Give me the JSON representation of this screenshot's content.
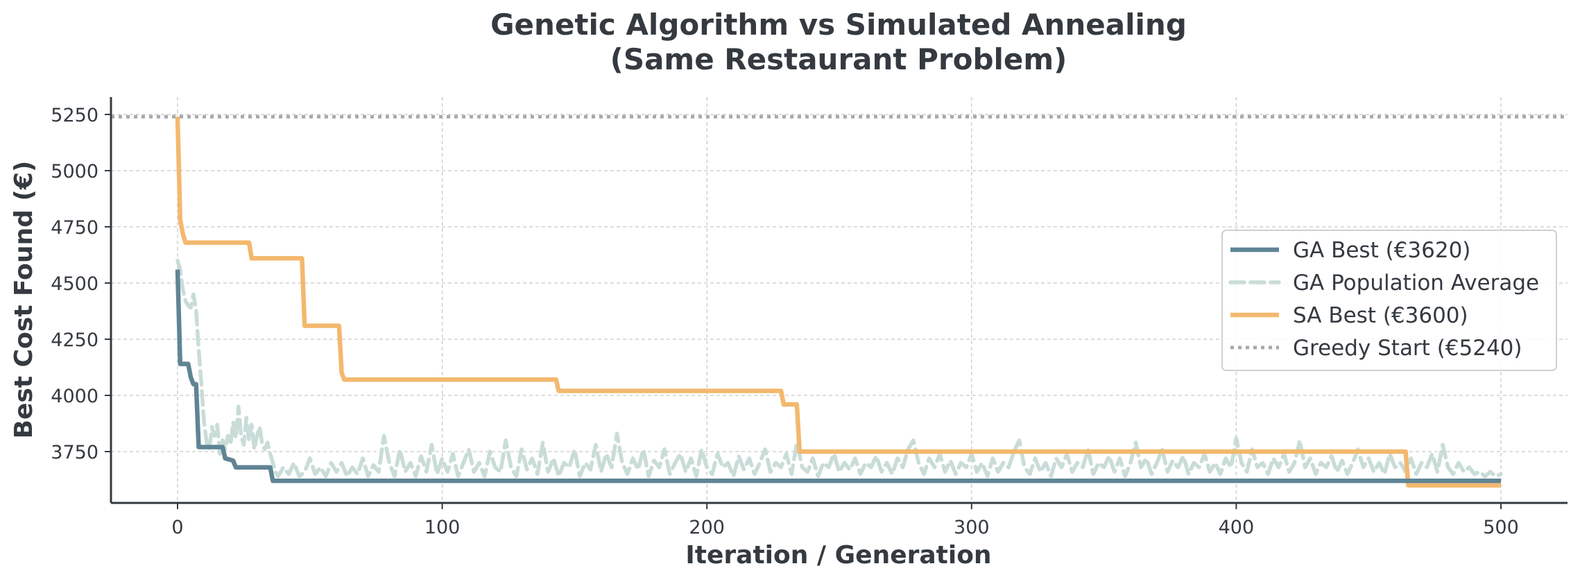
{
  "chart_data": {
    "type": "line",
    "title_lines": [
      "Genetic Algorithm vs Simulated Annealing",
      "(Same Restaurant Problem)"
    ],
    "xlabel": "Iteration / Generation",
    "ylabel": "Best Cost Found (€)",
    "xlim": [
      -25,
      525
    ],
    "ylim": [
      3530,
      5330
    ],
    "xticks": [
      0,
      100,
      200,
      300,
      400,
      500
    ],
    "yticks": [
      3750,
      4000,
      4250,
      4500,
      4750,
      5000,
      5250
    ],
    "grid": true,
    "legend_position": "center-right",
    "series": [
      {
        "name": "GA Best (€3620)",
        "color": "#5f8494",
        "style": "solid",
        "step": true,
        "points": [
          [
            0,
            4560
          ],
          [
            1,
            4140
          ],
          [
            4,
            4140
          ],
          [
            5,
            4080
          ],
          [
            6,
            4050
          ],
          [
            7,
            4050
          ],
          [
            8,
            3770
          ],
          [
            17,
            3770
          ],
          [
            18,
            3720
          ],
          [
            21,
            3710
          ],
          [
            22,
            3680
          ],
          [
            35,
            3680
          ],
          [
            36,
            3620
          ],
          [
            500,
            3620
          ]
        ]
      },
      {
        "name": "GA Population Average",
        "color": "#c9dcd8",
        "style": "dashed",
        "step": false,
        "points": [
          [
            0,
            4600
          ],
          [
            1,
            4560
          ],
          [
            2,
            4470
          ],
          [
            3,
            4420
          ],
          [
            4,
            4400
          ],
          [
            5,
            4390
          ],
          [
            6,
            4450
          ],
          [
            7,
            4380
          ],
          [
            8,
            4200
          ],
          [
            9,
            4050
          ],
          [
            10,
            3880
          ],
          [
            11,
            3790
          ],
          [
            12,
            3760
          ],
          [
            13,
            3860
          ],
          [
            14,
            3820
          ],
          [
            15,
            3870
          ],
          [
            16,
            3740
          ],
          [
            17,
            3800
          ],
          [
            18,
            3760
          ],
          [
            19,
            3820
          ],
          [
            20,
            3780
          ],
          [
            21,
            3880
          ],
          [
            22,
            3810
          ],
          [
            23,
            3950
          ],
          [
            24,
            3820
          ],
          [
            25,
            3780
          ],
          [
            26,
            3900
          ],
          [
            27,
            3800
          ],
          [
            28,
            3870
          ],
          [
            29,
            3760
          ],
          [
            30,
            3820
          ],
          [
            31,
            3860
          ],
          [
            32,
            3780
          ],
          [
            33,
            3760
          ],
          [
            34,
            3790
          ],
          [
            35,
            3740
          ],
          [
            36,
            3700
          ],
          [
            37,
            3660
          ],
          [
            38,
            3640
          ],
          [
            40,
            3680
          ],
          [
            42,
            3650
          ],
          [
            44,
            3700
          ],
          [
            46,
            3640
          ],
          [
            48,
            3660
          ],
          [
            50,
            3720
          ],
          [
            52,
            3650
          ],
          [
            54,
            3680
          ],
          [
            56,
            3640
          ],
          [
            58,
            3700
          ],
          [
            60,
            3660
          ],
          [
            62,
            3700
          ],
          [
            64,
            3640
          ],
          [
            66,
            3680
          ],
          [
            68,
            3650
          ],
          [
            70,
            3720
          ],
          [
            72,
            3640
          ],
          [
            74,
            3690
          ],
          [
            76,
            3660
          ],
          [
            78,
            3820
          ],
          [
            80,
            3700
          ],
          [
            82,
            3640
          ],
          [
            84,
            3760
          ],
          [
            86,
            3660
          ],
          [
            88,
            3700
          ],
          [
            90,
            3640
          ],
          [
            92,
            3730
          ],
          [
            94,
            3660
          ],
          [
            96,
            3780
          ],
          [
            98,
            3650
          ],
          [
            100,
            3720
          ],
          [
            102,
            3660
          ],
          [
            104,
            3740
          ],
          [
            106,
            3640
          ],
          [
            108,
            3700
          ],
          [
            110,
            3760
          ],
          [
            112,
            3660
          ],
          [
            114,
            3700
          ],
          [
            116,
            3640
          ],
          [
            118,
            3750
          ],
          [
            120,
            3680
          ],
          [
            122,
            3660
          ],
          [
            124,
            3800
          ],
          [
            126,
            3680
          ],
          [
            128,
            3640
          ],
          [
            130,
            3760
          ],
          [
            132,
            3670
          ],
          [
            134,
            3720
          ],
          [
            136,
            3650
          ],
          [
            138,
            3790
          ],
          [
            140,
            3660
          ],
          [
            142,
            3720
          ],
          [
            144,
            3640
          ],
          [
            146,
            3700
          ],
          [
            148,
            3680
          ],
          [
            150,
            3760
          ],
          [
            152,
            3640
          ],
          [
            154,
            3700
          ],
          [
            156,
            3670
          ],
          [
            158,
            3780
          ],
          [
            160,
            3660
          ],
          [
            162,
            3740
          ],
          [
            164,
            3680
          ],
          [
            166,
            3830
          ],
          [
            168,
            3700
          ],
          [
            170,
            3650
          ],
          [
            172,
            3720
          ],
          [
            174,
            3670
          ],
          [
            176,
            3760
          ],
          [
            178,
            3640
          ],
          [
            180,
            3710
          ],
          [
            182,
            3680
          ],
          [
            184,
            3760
          ],
          [
            186,
            3650
          ],
          [
            188,
            3700
          ],
          [
            190,
            3740
          ],
          [
            192,
            3660
          ],
          [
            194,
            3720
          ],
          [
            196,
            3640
          ],
          [
            198,
            3760
          ],
          [
            200,
            3680
          ],
          [
            202,
            3650
          ],
          [
            204,
            3740
          ],
          [
            206,
            3680
          ],
          [
            208,
            3700
          ],
          [
            210,
            3640
          ],
          [
            212,
            3730
          ],
          [
            214,
            3670
          ],
          [
            216,
            3720
          ],
          [
            218,
            3650
          ],
          [
            220,
            3700
          ],
          [
            222,
            3760
          ],
          [
            224,
            3660
          ],
          [
            226,
            3700
          ],
          [
            228,
            3680
          ],
          [
            230,
            3740
          ],
          [
            232,
            3650
          ],
          [
            234,
            3790
          ],
          [
            236,
            3680
          ],
          [
            238,
            3660
          ],
          [
            240,
            3720
          ],
          [
            242,
            3640
          ],
          [
            244,
            3700
          ],
          [
            246,
            3680
          ],
          [
            248,
            3740
          ],
          [
            250,
            3660
          ],
          [
            252,
            3700
          ],
          [
            254,
            3670
          ],
          [
            256,
            3720
          ],
          [
            258,
            3650
          ],
          [
            260,
            3700
          ],
          [
            262,
            3680
          ],
          [
            264,
            3730
          ],
          [
            266,
            3660
          ],
          [
            268,
            3700
          ],
          [
            270,
            3650
          ],
          [
            272,
            3720
          ],
          [
            274,
            3680
          ],
          [
            276,
            3760
          ],
          [
            278,
            3800
          ],
          [
            280,
            3700
          ],
          [
            282,
            3650
          ],
          [
            284,
            3720
          ],
          [
            286,
            3680
          ],
          [
            288,
            3740
          ],
          [
            290,
            3660
          ],
          [
            292,
            3710
          ],
          [
            294,
            3650
          ],
          [
            296,
            3700
          ],
          [
            298,
            3680
          ],
          [
            300,
            3740
          ],
          [
            302,
            3660
          ],
          [
            304,
            3700
          ],
          [
            306,
            3640
          ],
          [
            308,
            3720
          ],
          [
            310,
            3660
          ],
          [
            312,
            3700
          ],
          [
            314,
            3680
          ],
          [
            316,
            3750
          ],
          [
            318,
            3800
          ],
          [
            320,
            3680
          ],
          [
            322,
            3650
          ],
          [
            324,
            3720
          ],
          [
            326,
            3660
          ],
          [
            328,
            3700
          ],
          [
            330,
            3640
          ],
          [
            332,
            3720
          ],
          [
            334,
            3680
          ],
          [
            336,
            3740
          ],
          [
            338,
            3660
          ],
          [
            340,
            3700
          ],
          [
            342,
            3680
          ],
          [
            344,
            3760
          ],
          [
            346,
            3650
          ],
          [
            348,
            3700
          ],
          [
            350,
            3680
          ],
          [
            352,
            3730
          ],
          [
            354,
            3660
          ],
          [
            356,
            3720
          ],
          [
            358,
            3640
          ],
          [
            360,
            3700
          ],
          [
            362,
            3790
          ],
          [
            364,
            3680
          ],
          [
            366,
            3720
          ],
          [
            368,
            3650
          ],
          [
            370,
            3700
          ],
          [
            372,
            3760
          ],
          [
            374,
            3660
          ],
          [
            376,
            3710
          ],
          [
            378,
            3680
          ],
          [
            380,
            3730
          ],
          [
            382,
            3650
          ],
          [
            384,
            3700
          ],
          [
            386,
            3680
          ],
          [
            388,
            3740
          ],
          [
            390,
            3660
          ],
          [
            392,
            3700
          ],
          [
            394,
            3650
          ],
          [
            396,
            3720
          ],
          [
            398,
            3680
          ],
          [
            400,
            3810
          ],
          [
            402,
            3700
          ],
          [
            404,
            3660
          ],
          [
            406,
            3760
          ],
          [
            408,
            3680
          ],
          [
            410,
            3700
          ],
          [
            412,
            3650
          ],
          [
            414,
            3720
          ],
          [
            416,
            3680
          ],
          [
            418,
            3740
          ],
          [
            420,
            3660
          ],
          [
            422,
            3700
          ],
          [
            424,
            3800
          ],
          [
            426,
            3680
          ],
          [
            428,
            3720
          ],
          [
            430,
            3650
          ],
          [
            432,
            3700
          ],
          [
            434,
            3680
          ],
          [
            436,
            3730
          ],
          [
            438,
            3660
          ],
          [
            440,
            3710
          ],
          [
            442,
            3650
          ],
          [
            444,
            3700
          ],
          [
            446,
            3760
          ],
          [
            448,
            3680
          ],
          [
            450,
            3720
          ],
          [
            452,
            3660
          ],
          [
            454,
            3700
          ],
          [
            456,
            3650
          ],
          [
            458,
            3740
          ],
          [
            460,
            3680
          ],
          [
            462,
            3700
          ],
          [
            464,
            3660
          ],
          [
            466,
            3720
          ],
          [
            468,
            3650
          ],
          [
            470,
            3700
          ],
          [
            472,
            3680
          ],
          [
            474,
            3740
          ],
          [
            476,
            3660
          ],
          [
            478,
            3780
          ],
          [
            480,
            3680
          ],
          [
            482,
            3650
          ],
          [
            484,
            3700
          ],
          [
            486,
            3660
          ],
          [
            488,
            3680
          ],
          [
            490,
            3650
          ],
          [
            492,
            3660
          ],
          [
            494,
            3640
          ],
          [
            496,
            3660
          ],
          [
            498,
            3640
          ],
          [
            500,
            3650
          ]
        ]
      },
      {
        "name": "SA Best (€3600)",
        "color": "#f3b86e",
        "style": "solid",
        "step": true,
        "points": [
          [
            0,
            5240
          ],
          [
            1,
            4780
          ],
          [
            2,
            4720
          ],
          [
            3,
            4680
          ],
          [
            27,
            4680
          ],
          [
            28,
            4610
          ],
          [
            47,
            4610
          ],
          [
            48,
            4310
          ],
          [
            61,
            4310
          ],
          [
            62,
            4100
          ],
          [
            63,
            4070
          ],
          [
            143,
            4070
          ],
          [
            144,
            4020
          ],
          [
            228,
            4020
          ],
          [
            229,
            3960
          ],
          [
            234,
            3960
          ],
          [
            235,
            3750
          ],
          [
            464,
            3750
          ],
          [
            465,
            3600
          ],
          [
            500,
            3600
          ]
        ]
      },
      {
        "name": "Greedy Start (€5240)",
        "color": "#a9a9a9",
        "style": "dotted",
        "step": false,
        "hline": 5240
      }
    ]
  }
}
